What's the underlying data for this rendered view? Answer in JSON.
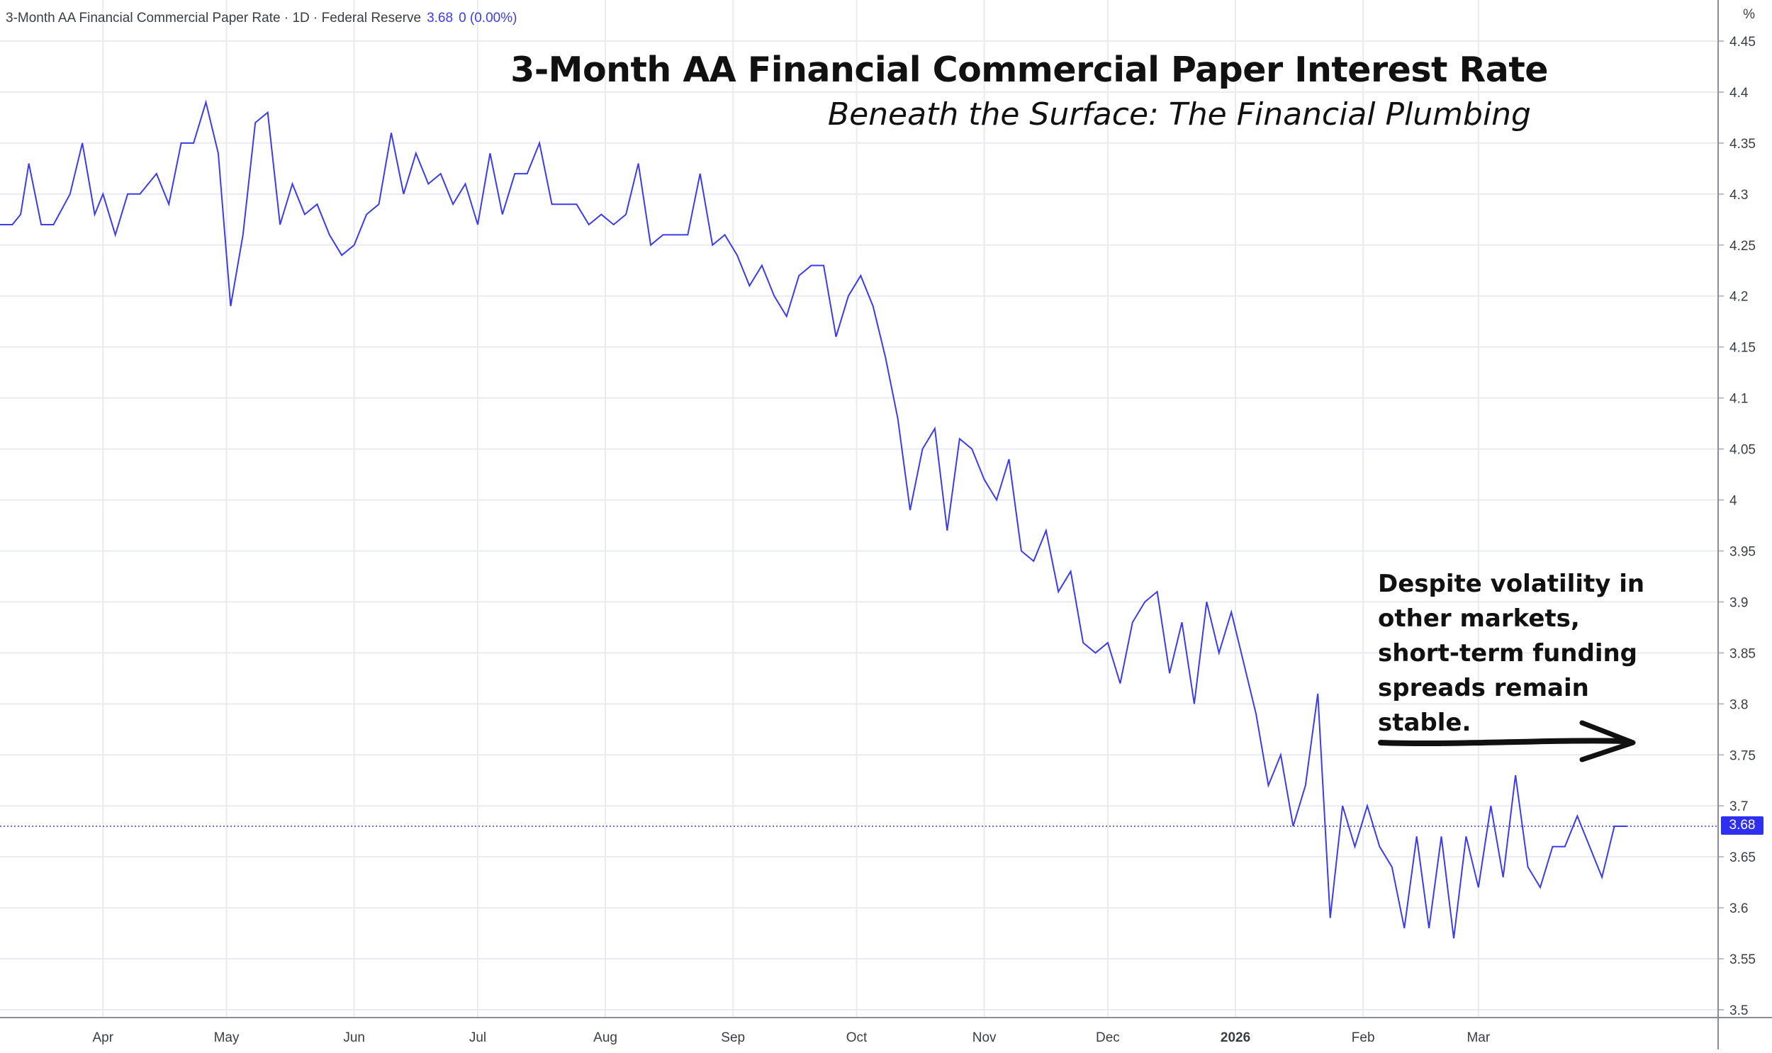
{
  "legend": {
    "series_title": "3-Month AA Financial Commercial Paper Rate · 1D · Federal Reserve",
    "last_value": "3.68",
    "change": "0 (0.00%)"
  },
  "title": "3-Month AA Financial Commercial Paper Interest Rate",
  "subtitle": "Beneath the Surface: The Financial Plumbing",
  "annotation": "Despite volatility in other markets, short-term funding spreads remain stable.",
  "unit_label": "%",
  "price_tag": "3.68",
  "colors": {
    "series": "#3b3bf0",
    "grid": "#e9ebf0",
    "text": "#3a3d45",
    "price_tag_bg": "#2f2ff2"
  },
  "chart_data": {
    "type": "line",
    "title": "3-Month AA Financial Commercial Paper Interest Rate",
    "subtitle": "Beneath the Surface: The Financial Plumbing",
    "ylabel": "%",
    "ylim": [
      3.49,
      4.45
    ],
    "y_ticks": [
      3.5,
      3.55,
      3.6,
      3.65,
      3.7,
      3.75,
      3.8,
      3.85,
      3.9,
      3.95,
      4,
      4.05,
      4.1,
      4.15,
      4.2,
      4.25,
      4.3,
      4.35,
      4.4,
      4.45
    ],
    "y_tick_labels": [
      "3.5",
      "3.55",
      "3.6",
      "3.65",
      "3.7",
      "3.75",
      "3.8",
      "3.85",
      "3.9",
      "3.95",
      "4",
      "4.05",
      "4.1",
      "4.15",
      "4.2",
      "4.25",
      "4.3",
      "4.35",
      "4.4",
      "4.45"
    ],
    "xlim": [
      "2025-03-07",
      "2026-03-27"
    ],
    "x_ticks": [
      {
        "label": "Apr",
        "date": "2025-04-01",
        "bold": false
      },
      {
        "label": "May",
        "date": "2025-05-01",
        "bold": false
      },
      {
        "label": "Jun",
        "date": "2025-06-01",
        "bold": false
      },
      {
        "label": "Jul",
        "date": "2025-07-01",
        "bold": false
      },
      {
        "label": "Aug",
        "date": "2025-08-01",
        "bold": false
      },
      {
        "label": "Sep",
        "date": "2025-09-01",
        "bold": false
      },
      {
        "label": "Oct",
        "date": "2025-10-01",
        "bold": false
      },
      {
        "label": "Nov",
        "date": "2025-11-01",
        "bold": false
      },
      {
        "label": "Dec",
        "date": "2025-12-01",
        "bold": false
      },
      {
        "label": "2026",
        "date": "2026-01-01",
        "bold": true
      },
      {
        "label": "Feb",
        "date": "2026-02-01",
        "bold": false
      },
      {
        "label": "Mar",
        "date": "2026-03-01",
        "bold": false
      }
    ],
    "grid": true,
    "last_value_line": 3.68,
    "series": [
      {
        "values": [
          [
            "2025-03-07",
            4.27
          ],
          [
            "2025-03-10",
            4.27
          ],
          [
            "2025-03-12",
            4.28
          ],
          [
            "2025-03-14",
            4.33
          ],
          [
            "2025-03-17",
            4.27
          ],
          [
            "2025-03-20",
            4.27
          ],
          [
            "2025-03-24",
            4.3
          ],
          [
            "2025-03-27",
            4.35
          ],
          [
            "2025-03-30",
            4.28
          ],
          [
            "2025-04-01",
            4.3
          ],
          [
            "2025-04-04",
            4.26
          ],
          [
            "2025-04-07",
            4.3
          ],
          [
            "2025-04-10",
            4.3
          ],
          [
            "2025-04-14",
            4.32
          ],
          [
            "2025-04-17",
            4.29
          ],
          [
            "2025-04-20",
            4.35
          ],
          [
            "2025-04-23",
            4.35
          ],
          [
            "2025-04-26",
            4.39
          ],
          [
            "2025-04-29",
            4.34
          ],
          [
            "2025-05-02",
            4.19
          ],
          [
            "2025-05-05",
            4.26
          ],
          [
            "2025-05-08",
            4.37
          ],
          [
            "2025-05-11",
            4.38
          ],
          [
            "2025-05-14",
            4.27
          ],
          [
            "2025-05-17",
            4.31
          ],
          [
            "2025-05-20",
            4.28
          ],
          [
            "2025-05-23",
            4.29
          ],
          [
            "2025-05-26",
            4.26
          ],
          [
            "2025-05-29",
            4.24
          ],
          [
            "2025-06-01",
            4.25
          ],
          [
            "2025-06-04",
            4.28
          ],
          [
            "2025-06-07",
            4.29
          ],
          [
            "2025-06-10",
            4.36
          ],
          [
            "2025-06-13",
            4.3
          ],
          [
            "2025-06-16",
            4.34
          ],
          [
            "2025-06-19",
            4.31
          ],
          [
            "2025-06-22",
            4.32
          ],
          [
            "2025-06-25",
            4.29
          ],
          [
            "2025-06-28",
            4.31
          ],
          [
            "2025-07-01",
            4.27
          ],
          [
            "2025-07-04",
            4.34
          ],
          [
            "2025-07-07",
            4.28
          ],
          [
            "2025-07-10",
            4.32
          ],
          [
            "2025-07-13",
            4.32
          ],
          [
            "2025-07-16",
            4.35
          ],
          [
            "2025-07-19",
            4.29
          ],
          [
            "2025-07-22",
            4.29
          ],
          [
            "2025-07-25",
            4.29
          ],
          [
            "2025-07-28",
            4.27
          ],
          [
            "2025-07-31",
            4.28
          ],
          [
            "2025-08-03",
            4.27
          ],
          [
            "2025-08-06",
            4.28
          ],
          [
            "2025-08-09",
            4.33
          ],
          [
            "2025-08-12",
            4.25
          ],
          [
            "2025-08-15",
            4.26
          ],
          [
            "2025-08-18",
            4.26
          ],
          [
            "2025-08-21",
            4.26
          ],
          [
            "2025-08-24",
            4.32
          ],
          [
            "2025-08-27",
            4.25
          ],
          [
            "2025-08-30",
            4.26
          ],
          [
            "2025-09-02",
            4.24
          ],
          [
            "2025-09-05",
            4.21
          ],
          [
            "2025-09-08",
            4.23
          ],
          [
            "2025-09-11",
            4.2
          ],
          [
            "2025-09-14",
            4.18
          ],
          [
            "2025-09-17",
            4.22
          ],
          [
            "2025-09-20",
            4.23
          ],
          [
            "2025-09-23",
            4.23
          ],
          [
            "2025-09-26",
            4.16
          ],
          [
            "2025-09-29",
            4.2
          ],
          [
            "2025-10-02",
            4.22
          ],
          [
            "2025-10-05",
            4.19
          ],
          [
            "2025-10-08",
            4.14
          ],
          [
            "2025-10-11",
            4.08
          ],
          [
            "2025-10-14",
            3.99
          ],
          [
            "2025-10-17",
            4.05
          ],
          [
            "2025-10-20",
            4.07
          ],
          [
            "2025-10-23",
            3.97
          ],
          [
            "2025-10-26",
            4.06
          ],
          [
            "2025-10-29",
            4.05
          ],
          [
            "2025-11-01",
            4.02
          ],
          [
            "2025-11-04",
            4.0
          ],
          [
            "2025-11-07",
            4.04
          ],
          [
            "2025-11-10",
            3.95
          ],
          [
            "2025-11-13",
            3.94
          ],
          [
            "2025-11-16",
            3.97
          ],
          [
            "2025-11-19",
            3.91
          ],
          [
            "2025-11-22",
            3.93
          ],
          [
            "2025-11-25",
            3.86
          ],
          [
            "2025-11-28",
            3.85
          ],
          [
            "2025-12-01",
            3.86
          ],
          [
            "2025-12-04",
            3.82
          ],
          [
            "2025-12-07",
            3.88
          ],
          [
            "2025-12-10",
            3.9
          ],
          [
            "2025-12-13",
            3.91
          ],
          [
            "2025-12-16",
            3.83
          ],
          [
            "2025-12-19",
            3.88
          ],
          [
            "2025-12-22",
            3.8
          ],
          [
            "2025-12-25",
            3.9
          ],
          [
            "2025-12-28",
            3.85
          ],
          [
            "2025-12-31",
            3.89
          ],
          [
            "2026-01-03",
            3.84
          ],
          [
            "2026-01-06",
            3.79
          ],
          [
            "2026-01-09",
            3.72
          ],
          [
            "2026-01-12",
            3.75
          ],
          [
            "2026-01-15",
            3.68
          ],
          [
            "2026-01-18",
            3.72
          ],
          [
            "2026-01-21",
            3.81
          ],
          [
            "2026-01-24",
            3.59
          ],
          [
            "2026-01-27",
            3.7
          ],
          [
            "2026-01-30",
            3.66
          ],
          [
            "2026-02-02",
            3.7
          ],
          [
            "2026-02-05",
            3.66
          ],
          [
            "2026-02-08",
            3.64
          ],
          [
            "2026-02-11",
            3.58
          ],
          [
            "2026-02-14",
            3.67
          ],
          [
            "2026-02-17",
            3.58
          ],
          [
            "2026-02-20",
            3.67
          ],
          [
            "2026-02-23",
            3.57
          ],
          [
            "2026-02-26",
            3.67
          ],
          [
            "2026-03-01",
            3.62
          ],
          [
            "2026-03-04",
            3.7
          ],
          [
            "2026-03-07",
            3.63
          ],
          [
            "2026-03-10",
            3.73
          ],
          [
            "2026-03-13",
            3.64
          ],
          [
            "2026-03-16",
            3.62
          ],
          [
            "2026-03-19",
            3.66
          ],
          [
            "2026-03-22",
            3.66
          ],
          [
            "2026-03-25",
            3.69
          ],
          [
            "2026-03-28",
            3.66
          ],
          [
            "2026-03-31",
            3.63
          ],
          [
            "2026-04-03",
            3.68
          ],
          [
            "2026-04-06",
            3.68
          ]
        ]
      }
    ]
  }
}
